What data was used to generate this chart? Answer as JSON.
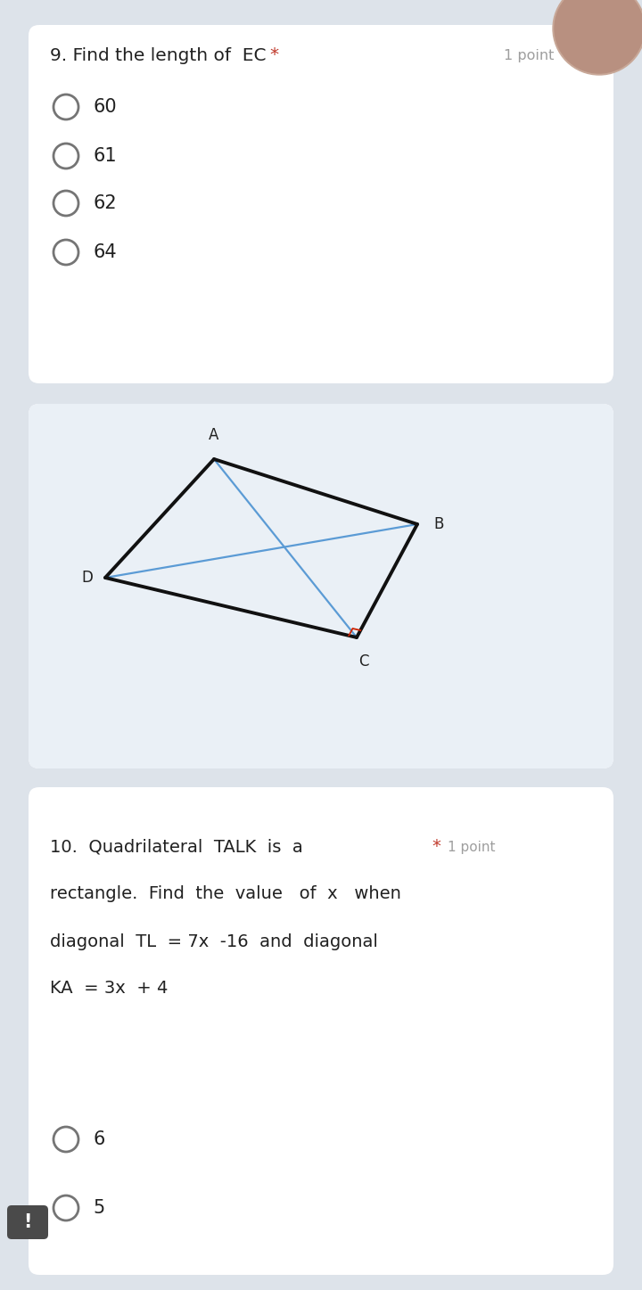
{
  "bg_color": "#dde3ea",
  "card_bg": "#ffffff",
  "q9_title": "9. Find the length of  EC",
  "q9_star": "*",
  "q9_point": "1 point",
  "q9_options": [
    "60",
    "61",
    "62",
    "64"
  ],
  "q10_title_line1": "10.  Quadrilateral  TALK  is  a",
  "q10_title_line2": "rectangle.  Find  the  value   of  x   when",
  "q10_title_line3": "diagonal  TL  = 7x  -16  and  diagonal",
  "q10_title_line4": "KA  = 3x  + 4",
  "q10_star": "*",
  "q10_point": "1 point",
  "q10_options": [
    "6",
    "5"
  ],
  "text_color": "#212121",
  "option_circle_color": "#757575",
  "star_color": "#c0392b",
  "point_color": "#9e9e9e",
  "line_color": "#111111",
  "diag_color": "#5b9bd5",
  "right_angle_color": "#cc2200",
  "A": [
    0.33,
    0.735
  ],
  "B": [
    0.64,
    0.658
  ],
  "C": [
    0.56,
    0.527
  ],
  "D": [
    0.175,
    0.604
  ]
}
